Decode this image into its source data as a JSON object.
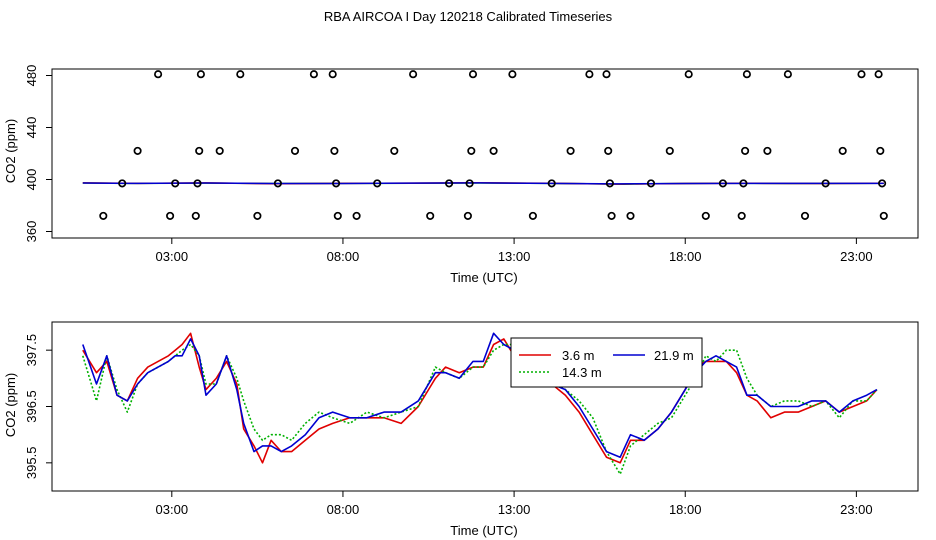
{
  "title": "RBA AIRCOA I  Day 120218  Calibrated Timeseries",
  "chart_data": [
    {
      "type": "scatter",
      "panel": "top",
      "xlabel": "Time (UTC)",
      "ylabel": "CO2 (ppm)",
      "x_ticks": [
        3,
        8,
        13,
        18,
        23
      ],
      "x_tick_labels": [
        "03:00",
        "08:00",
        "13:00",
        "18:00",
        "23:00"
      ],
      "xlim": [
        -0.5,
        24.8
      ],
      "y_ticks": [
        360,
        400,
        440,
        480
      ],
      "y_tick_labels": [
        "360",
        "400",
        "440",
        "480"
      ],
      "ylim": [
        355,
        485
      ],
      "points": [
        {
          "x": 1.0,
          "y": 372
        },
        {
          "x": 1.55,
          "y": 397
        },
        {
          "x": 2.0,
          "y": 422
        },
        {
          "x": 2.6,
          "y": 481
        },
        {
          "x": 2.95,
          "y": 372
        },
        {
          "x": 3.1,
          "y": 397
        },
        {
          "x": 3.7,
          "y": 372
        },
        {
          "x": 3.75,
          "y": 397
        },
        {
          "x": 3.8,
          "y": 422
        },
        {
          "x": 3.85,
          "y": 481
        },
        {
          "x": 4.4,
          "y": 422
        },
        {
          "x": 5.0,
          "y": 481
        },
        {
          "x": 5.5,
          "y": 372
        },
        {
          "x": 6.1,
          "y": 397
        },
        {
          "x": 6.6,
          "y": 422
        },
        {
          "x": 7.15,
          "y": 481
        },
        {
          "x": 7.7,
          "y": 481
        },
        {
          "x": 7.75,
          "y": 422
        },
        {
          "x": 7.8,
          "y": 397
        },
        {
          "x": 7.85,
          "y": 372
        },
        {
          "x": 8.4,
          "y": 372
        },
        {
          "x": 9.0,
          "y": 397
        },
        {
          "x": 9.5,
          "y": 422
        },
        {
          "x": 10.05,
          "y": 481
        },
        {
          "x": 10.55,
          "y": 372
        },
        {
          "x": 11.1,
          "y": 397
        },
        {
          "x": 11.65,
          "y": 372
        },
        {
          "x": 11.7,
          "y": 397
        },
        {
          "x": 11.75,
          "y": 422
        },
        {
          "x": 11.8,
          "y": 481
        },
        {
          "x": 12.4,
          "y": 422
        },
        {
          "x": 12.95,
          "y": 481
        },
        {
          "x": 13.55,
          "y": 372
        },
        {
          "x": 14.1,
          "y": 397
        },
        {
          "x": 14.65,
          "y": 422
        },
        {
          "x": 15.2,
          "y": 481
        },
        {
          "x": 15.7,
          "y": 481
        },
        {
          "x": 15.75,
          "y": 422
        },
        {
          "x": 15.8,
          "y": 397
        },
        {
          "x": 15.85,
          "y": 372
        },
        {
          "x": 16.4,
          "y": 372
        },
        {
          "x": 17.0,
          "y": 397
        },
        {
          "x": 17.55,
          "y": 422
        },
        {
          "x": 18.1,
          "y": 481
        },
        {
          "x": 18.6,
          "y": 372
        },
        {
          "x": 19.1,
          "y": 397
        },
        {
          "x": 19.65,
          "y": 372
        },
        {
          "x": 19.7,
          "y": 397
        },
        {
          "x": 19.75,
          "y": 422
        },
        {
          "x": 19.8,
          "y": 481
        },
        {
          "x": 20.4,
          "y": 422
        },
        {
          "x": 21.0,
          "y": 481
        },
        {
          "x": 21.5,
          "y": 372
        },
        {
          "x": 22.1,
          "y": 397
        },
        {
          "x": 22.6,
          "y": 422
        },
        {
          "x": 23.15,
          "y": 481
        },
        {
          "x": 23.65,
          "y": 481
        },
        {
          "x": 23.7,
          "y": 422
        },
        {
          "x": 23.75,
          "y": 397
        },
        {
          "x": 23.8,
          "y": 372
        }
      ],
      "baseline_series": [
        {
          "color": "#00b000",
          "x": [
            0.4,
            2,
            4,
            6,
            8,
            10,
            12,
            14,
            15.5,
            16.2,
            17,
            19,
            21,
            23,
            23.8
          ],
          "y": [
            397.3,
            397.0,
            397.2,
            396.9,
            397.0,
            397.1,
            397.3,
            397.0,
            396.6,
            396.4,
            396.7,
            397.1,
            396.9,
            397.0,
            397.1
          ]
        },
        {
          "color": "#e00000",
          "x": [
            0.4,
            2,
            4,
            6,
            8,
            10,
            12,
            14,
            16,
            18,
            20,
            22,
            23.8
          ],
          "y": [
            397.4,
            397.0,
            397.4,
            396.8,
            397.0,
            397.2,
            397.5,
            397.1,
            396.5,
            396.9,
            397.1,
            396.9,
            397.1
          ]
        },
        {
          "color": "#0000d0",
          "x": [
            0.4,
            2,
            4,
            6,
            8,
            10,
            12,
            14,
            16,
            18,
            20,
            22,
            23.8
          ],
          "y": [
            397.3,
            397.0,
            397.3,
            396.9,
            396.9,
            397.2,
            397.4,
            397.0,
            396.6,
            396.9,
            397.0,
            397.0,
            397.0
          ]
        }
      ]
    },
    {
      "type": "line",
      "panel": "bottom",
      "xlabel": "Time (UTC)",
      "ylabel": "CO2 (ppm)",
      "x_ticks": [
        3,
        8,
        13,
        18,
        23
      ],
      "x_tick_labels": [
        "03:00",
        "08:00",
        "13:00",
        "18:00",
        "23:00"
      ],
      "xlim": [
        -0.5,
        24.8
      ],
      "y_ticks": [
        395.5,
        396.5,
        397.5
      ],
      "y_tick_labels": [
        "395.5",
        "396.5",
        "397.5"
      ],
      "ylim": [
        395.0,
        398.0
      ],
      "legend": {
        "entries": [
          "3.6 m",
          "14.3 m",
          "21.9 m"
        ],
        "position": "top-center"
      },
      "series": [
        {
          "name": "3.6 m",
          "color": "#e00000",
          "dash": "",
          "x": [
            0.4,
            0.8,
            1.1,
            1.4,
            1.7,
            2.0,
            2.3,
            2.6,
            2.9,
            3.1,
            3.3,
            3.55,
            3.8,
            4.0,
            4.3,
            4.6,
            4.9,
            5.1,
            5.4,
            5.65,
            5.9,
            6.2,
            6.5,
            6.9,
            7.3,
            7.7,
            8.2,
            8.7,
            9.2,
            9.7,
            10.2,
            10.7,
            11.0,
            11.4,
            11.8,
            12.1,
            12.4,
            12.7,
            13.0,
            13.3,
            13.7,
            14.1,
            14.5,
            14.9,
            15.3,
            15.7,
            16.1,
            16.4,
            16.8,
            17.2,
            17.6,
            18.0,
            18.3,
            18.6,
            18.9,
            19.2,
            19.5,
            19.8,
            20.1,
            20.5,
            20.9,
            21.3,
            21.7,
            22.1,
            22.5,
            22.9,
            23.3,
            23.6
          ],
          "y": [
            397.5,
            397.1,
            397.3,
            396.7,
            396.6,
            397.0,
            397.2,
            397.3,
            397.4,
            397.5,
            397.6,
            397.8,
            397.2,
            396.8,
            397.0,
            397.3,
            396.9,
            396.1,
            395.8,
            395.5,
            395.9,
            395.7,
            395.7,
            395.9,
            396.1,
            396.2,
            396.3,
            396.3,
            396.3,
            396.2,
            396.5,
            397.0,
            397.2,
            397.1,
            397.2,
            397.2,
            397.6,
            397.7,
            397.4,
            397.2,
            397.1,
            396.9,
            396.7,
            396.4,
            396.0,
            395.6,
            395.5,
            395.9,
            395.9,
            396.1,
            396.4,
            396.8,
            397.2,
            397.3,
            397.3,
            397.3,
            397.1,
            396.7,
            396.6,
            396.3,
            396.4,
            396.4,
            396.5,
            396.6,
            396.4,
            396.5,
            396.6,
            396.8
          ]
        },
        {
          "name": "14.3 m",
          "color": "#00b000",
          "dash": "2,2",
          "x": [
            0.4,
            0.8,
            1.1,
            1.4,
            1.7,
            2.0,
            2.3,
            2.6,
            2.9,
            3.1,
            3.3,
            3.55,
            3.8,
            4.0,
            4.3,
            4.6,
            4.9,
            5.1,
            5.4,
            5.65,
            5.9,
            6.2,
            6.5,
            6.9,
            7.3,
            7.7,
            8.2,
            8.7,
            9.2,
            9.7,
            10.2,
            10.7,
            11.0,
            11.4,
            11.8,
            12.1,
            12.4,
            12.7,
            13.0,
            13.3,
            13.7,
            14.1,
            14.5,
            14.9,
            15.3,
            15.7,
            16.1,
            16.4,
            16.8,
            17.2,
            17.6,
            18.0,
            18.3,
            18.6,
            18.9,
            19.2,
            19.5,
            19.8,
            20.1,
            20.5,
            20.9,
            21.3,
            21.7,
            22.1,
            22.5,
            22.9,
            23.3,
            23.6
          ],
          "y": [
            397.4,
            396.6,
            397.4,
            396.8,
            396.4,
            396.9,
            397.1,
            397.2,
            397.3,
            397.4,
            397.5,
            397.6,
            397.4,
            396.9,
            396.9,
            397.4,
            397.0,
            396.6,
            396.1,
            395.9,
            396.0,
            396.0,
            395.9,
            396.2,
            396.4,
            396.3,
            396.2,
            396.4,
            396.3,
            396.4,
            396.5,
            397.2,
            397.1,
            397.0,
            397.2,
            397.2,
            397.5,
            397.6,
            397.6,
            397.3,
            397.0,
            397.0,
            396.8,
            396.6,
            396.3,
            395.7,
            395.3,
            395.8,
            396.0,
            396.2,
            396.3,
            396.7,
            397.0,
            397.4,
            397.3,
            397.5,
            397.5,
            397.0,
            396.7,
            396.5,
            396.6,
            396.6,
            396.5,
            396.6,
            396.3,
            396.6,
            396.6,
            396.8
          ]
        },
        {
          "name": "21.9 m",
          "color": "#0000d0",
          "dash": "",
          "x": [
            0.4,
            0.8,
            1.1,
            1.4,
            1.7,
            2.0,
            2.3,
            2.6,
            2.9,
            3.1,
            3.3,
            3.55,
            3.8,
            4.0,
            4.3,
            4.6,
            4.9,
            5.1,
            5.4,
            5.65,
            5.9,
            6.2,
            6.5,
            6.9,
            7.3,
            7.7,
            8.2,
            8.7,
            9.2,
            9.7,
            10.2,
            10.7,
            11.0,
            11.4,
            11.8,
            12.1,
            12.4,
            12.7,
            13.0,
            13.3,
            13.7,
            14.1,
            14.5,
            14.9,
            15.3,
            15.7,
            16.1,
            16.4,
            16.8,
            17.2,
            17.6,
            18.0,
            18.3,
            18.6,
            18.9,
            19.2,
            19.5,
            19.8,
            20.1,
            20.5,
            20.9,
            21.3,
            21.7,
            22.1,
            22.5,
            22.9,
            23.3,
            23.6
          ],
          "y": [
            397.6,
            396.9,
            397.4,
            396.7,
            396.6,
            396.9,
            397.1,
            397.2,
            397.3,
            397.4,
            397.4,
            397.7,
            397.4,
            396.7,
            396.9,
            397.4,
            396.8,
            396.2,
            395.7,
            395.8,
            395.8,
            395.7,
            395.8,
            396.0,
            396.3,
            396.4,
            396.3,
            396.3,
            396.4,
            396.4,
            396.6,
            397.1,
            397.1,
            397.0,
            397.3,
            397.3,
            397.8,
            397.6,
            397.5,
            397.2,
            397.0,
            396.9,
            396.8,
            396.5,
            396.1,
            395.7,
            395.6,
            396.0,
            395.9,
            396.1,
            396.4,
            396.8,
            397.1,
            397.3,
            397.4,
            397.3,
            397.2,
            396.7,
            396.7,
            396.5,
            396.5,
            396.5,
            396.6,
            396.6,
            396.4,
            396.6,
            396.7,
            396.8
          ]
        }
      ]
    }
  ]
}
